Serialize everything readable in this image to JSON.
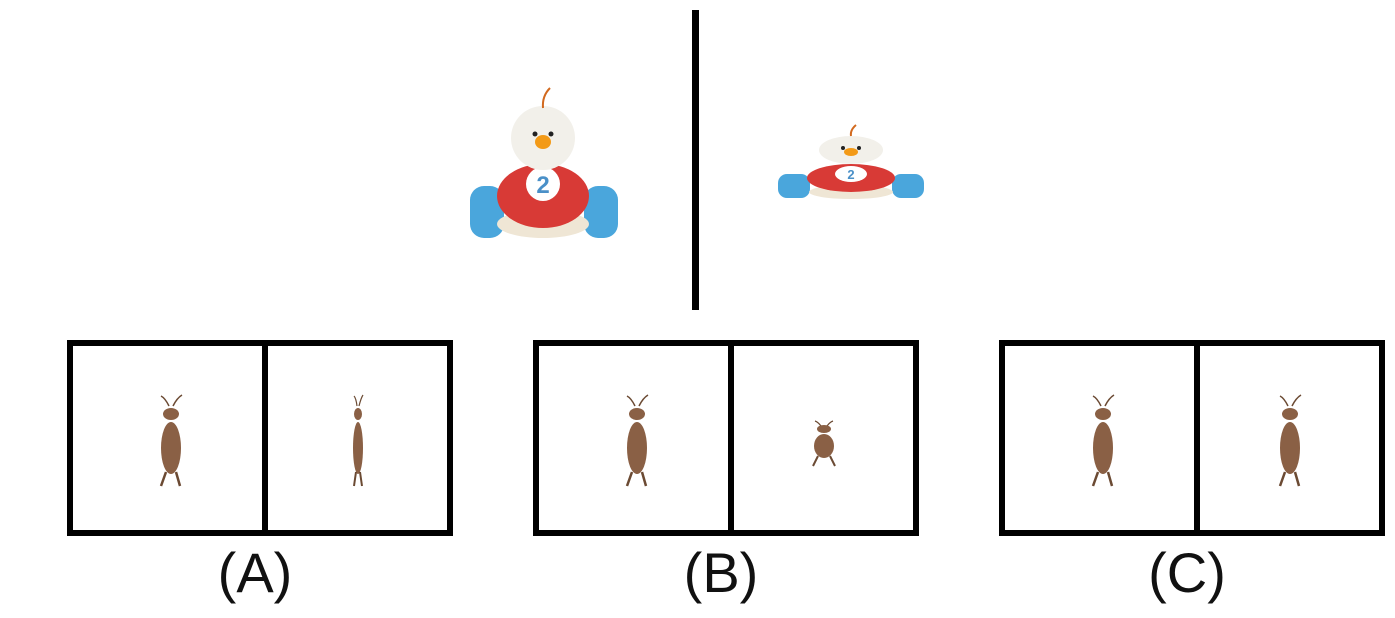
{
  "reference": {
    "left_icon": "toy-chick-car-icon",
    "right_icon": "toy-chick-car-squashed-icon",
    "car_number": "2"
  },
  "options": [
    {
      "label": "(A)",
      "left_icon": "cockroach-icon",
      "right_icon": "cockroach-thin-icon"
    },
    {
      "label": "(B)",
      "left_icon": "cockroach-icon",
      "right_icon": "cockroach-small-icon"
    },
    {
      "label": "(C)",
      "left_icon": "cockroach-icon",
      "right_icon": "cockroach-icon"
    }
  ],
  "colors": {
    "car_body": "#d83a36",
    "wheels": "#4aa6dc",
    "base": "#efe6d5",
    "head": "#f2f0ea",
    "beak": "#f39a17",
    "bug": "#8a6045",
    "border": "#000000"
  }
}
